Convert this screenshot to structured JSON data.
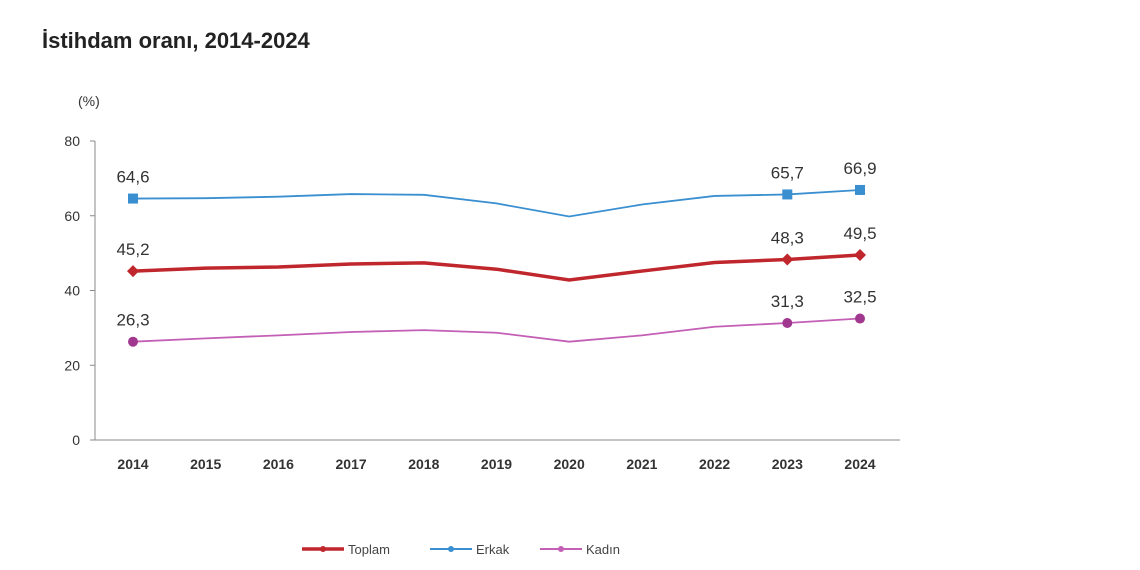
{
  "chart_data": {
    "type": "line",
    "title": "İstihdam oranı, 2014-2024",
    "ylabel": "(%)",
    "xlabel": "",
    "ylim": [
      0,
      80
    ],
    "yticks": [
      0,
      20,
      40,
      60,
      80
    ],
    "categories": [
      "2014",
      "2015",
      "2016",
      "2017",
      "2018",
      "2019",
      "2020",
      "2021",
      "2022",
      "2023",
      "2024"
    ],
    "grid": false,
    "legend_position": "bottom",
    "series": [
      {
        "name": "Toplam",
        "color": "#c0272d",
        "marker": "diamond",
        "values": [
          45.2,
          46.0,
          46.3,
          47.1,
          47.4,
          45.7,
          42.8,
          45.2,
          47.5,
          48.3,
          49.5
        ],
        "labels": {
          "0": "45,2",
          "9": "48,3",
          "10": "49,5"
        }
      },
      {
        "name": "Erkak",
        "color": "#3a8fd0",
        "marker": "square",
        "values": [
          64.6,
          64.7,
          65.1,
          65.8,
          65.6,
          63.3,
          59.8,
          63.0,
          65.3,
          65.7,
          66.9
        ],
        "labels": {
          "0": "64,6",
          "9": "65,7",
          "10": "66,9"
        }
      },
      {
        "name": "Kadın",
        "color": "#c35fb5",
        "marker": "circle",
        "values": [
          26.3,
          27.2,
          28.0,
          28.9,
          29.4,
          28.7,
          26.3,
          28.0,
          30.3,
          31.3,
          32.5
        ],
        "labels": {
          "0": "26,3",
          "9": "31,3",
          "10": "32,5"
        }
      }
    ]
  }
}
